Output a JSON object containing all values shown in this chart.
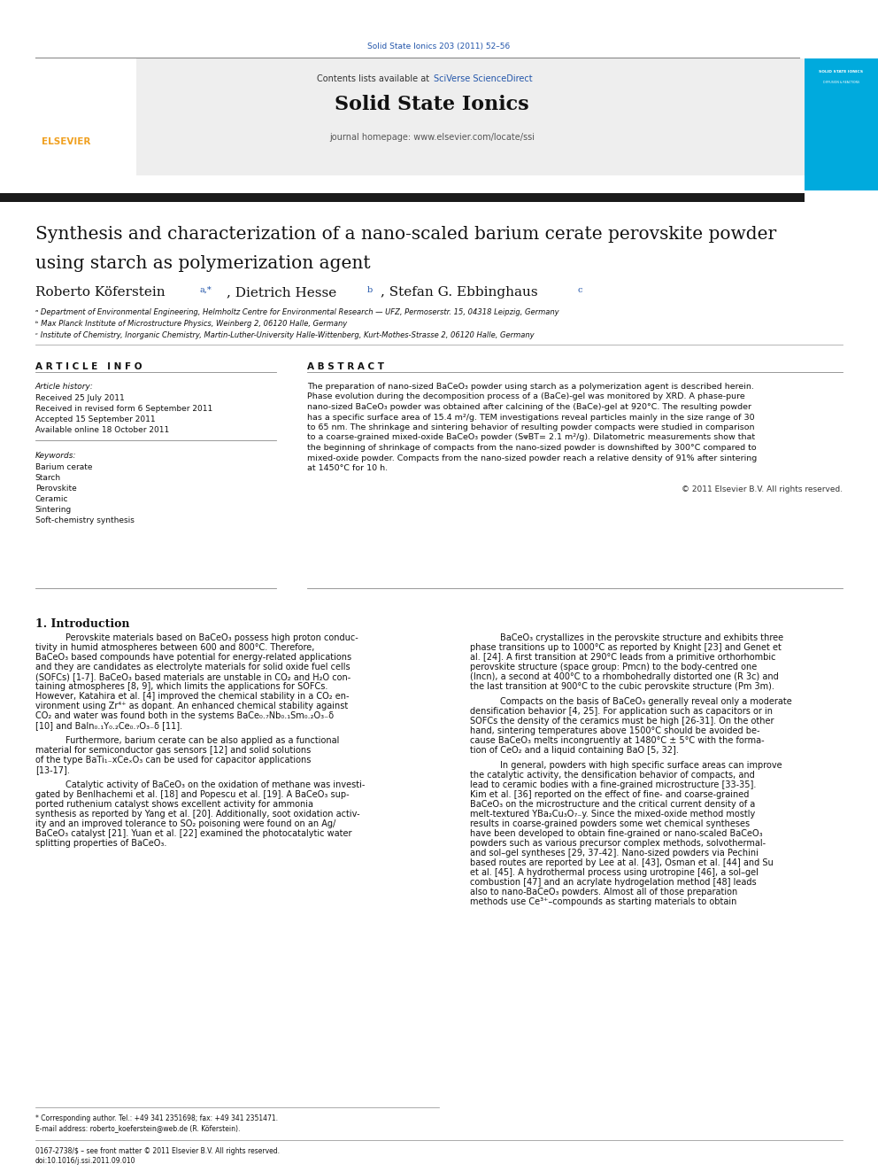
{
  "page_width": 9.92,
  "page_height": 13.23,
  "bg_color": "#ffffff",
  "journal_ref": "Solid State Ionics 203 (2011) 52–56",
  "journal_ref_color": "#2255aa",
  "journal_name": "Solid State Ionics",
  "contents_text": "Contents lists available at ",
  "sciverse_text": "SciVerse ScienceDirect",
  "sciverse_color": "#2255aa",
  "journal_homepage": "journal homepage: www.elsevier.com/locate/ssi",
  "article_title_line1": "Synthesis and characterization of a nano-scaled barium cerate perovskite powder",
  "article_title_line2": "using starch as polymerization agent",
  "author1": "Roberto Köferstein",
  "author1_sup": "a,*",
  "author2": "Dietrich Hesse",
  "author2_sup": "b",
  "author3": "Stefan G. Ebbinghaus",
  "author3_sup": "c",
  "affil_a": "ᵃ Department of Environmental Engineering, Helmholtz Centre for Environmental Research — UFZ, Permoserstr. 15, 04318 Leipzig, Germany",
  "affil_b": "ᵇ Max Planck Institute of Microstructure Physics, Weinberg 2, 06120 Halle, Germany",
  "affil_c": "ᶜ Institute of Chemistry, Inorganic Chemistry, Martin-Luther-University Halle-Wittenberg, Kurt-Mothes-Strasse 2, 06120 Halle, Germany",
  "article_info_header": "A R T I C L E   I N F O",
  "abstract_header": "A B S T R A C T",
  "article_history_label": "Article history:",
  "received1": "Received 25 July 2011",
  "received2": "Received in revised form 6 September 2011",
  "accepted": "Accepted 15 September 2011",
  "available": "Available online 18 October 2011",
  "keywords_label": "Keywords:",
  "keywords": [
    "Barium cerate",
    "Starch",
    "Perovskite",
    "Ceramic",
    "Sintering",
    "Soft-chemistry synthesis"
  ],
  "abstract_lines": [
    "The preparation of nano-sized BaCeO₃ powder using starch as a polymerization agent is described herein.",
    "Phase evolution during the decomposition process of a (BaCe)-gel was monitored by XRD. A phase-pure",
    "nano-sized BaCeO₃ powder was obtained after calcining of the (BaCe)-gel at 920°C. The resulting powder",
    "has a specific surface area of 15.4 m²/g. TEM investigations reveal particles mainly in the size range of 30",
    "to 65 nm. The shrinkage and sintering behavior of resulting powder compacts were studied in comparison",
    "to a coarse-grained mixed-oxide BaCeO₃ powder (SᴪBT= 2.1 m²/g). Dilatometric measurements show that",
    "the beginning of shrinkage of compacts from the nano-sized powder is downshifted by 300°C compared to",
    "mixed-oxide powder. Compacts from the nano-sized powder reach a relative density of 91% after sintering",
    "at 1450°C for 10 h."
  ],
  "copyright": "© 2011 Elsevier B.V. All rights reserved.",
  "intro_header": "1. Introduction",
  "intro_p1_lines": [
    "Perovskite materials based on BaCeO₃ possess high proton conduc-",
    "tivity in humid atmospheres between 600 and 800°C. Therefore,",
    "BaCeO₃ based compounds have potential for energy-related applications",
    "and they are candidates as electrolyte materials for solid oxide fuel cells",
    "(SOFCs) [1-7]. BaCeO₃ based materials are unstable in CO₂ and H₂O con-",
    "taining atmospheres [8, 9], which limits the applications for SOFCs.",
    "However, Katahira et al. [4] improved the chemical stability in a CO₂ en-",
    "vironment using Zr⁴⁺ as dopant. An enhanced chemical stability against",
    "CO₂ and water was found both in the systems BaCe₀.₇Nb₀.₁Sm₀.₂O₃₋δ",
    "[10] and BaIn₀.₁Y₀.₂Ce₀.₇O₃₋δ [11]."
  ],
  "intro_p2_lines": [
    "Furthermore, barium cerate can be also applied as a functional",
    "material for semiconductor gas sensors [12] and solid solutions",
    "of the type BaTi₁₋xCeₓO₃ can be used for capacitor applications",
    "[13-17]."
  ],
  "intro_p3_lines": [
    "Catalytic activity of BaCeO₃ on the oxidation of methane was investi-",
    "gated by Benlhachemi et al. [18] and Popescu et al. [19]. A BaCeO₃ sup-",
    "ported ruthenium catalyst shows excellent activity for ammonia",
    "synthesis as reported by Yang et al. [20]. Additionally, soot oxidation activ-",
    "ity and an improved tolerance to SO₂ poisoning were found on an Ag/",
    "BaCeO₃ catalyst [21]. Yuan et al. [22] examined the photocatalytic water",
    "splitting properties of BaCeO₃."
  ],
  "intro_col2_p1_lines": [
    "BaCeO₃ crystallizes in the perovskite structure and exhibits three",
    "phase transitions up to 1000°C as reported by Knight [23] and Genet et",
    "al. [24]. A first transition at 290°C leads from a primitive orthorhombic",
    "perovskite structure (space group: Pmcn) to the body-centred one",
    "(Incn), a second at 400°C to a rhombohedrally distorted one (R 3c) and",
    "the last transition at 900°C to the cubic perovskite structure (Pm 3m)."
  ],
  "intro_col2_p2_lines": [
    "Compacts on the basis of BaCeO₃ generally reveal only a moderate",
    "densification behavior [4, 25]. For application such as capacitors or in",
    "SOFCs the density of the ceramics must be high [26-31]. On the other",
    "hand, sintering temperatures above 1500°C should be avoided be-",
    "cause BaCeO₃ melts incongruently at 1480°C ± 5°C with the forma-",
    "tion of CeO₂ and a liquid containing BaO [5, 32]."
  ],
  "intro_col2_p3_lines": [
    "In general, powders with high specific surface areas can improve",
    "the catalytic activity, the densification behavior of compacts, and",
    "lead to ceramic bodies with a fine-grained microstructure [33-35].",
    "Kim et al. [36] reported on the effect of fine- and coarse-grained",
    "BaCeO₃ on the microstructure and the critical current density of a",
    "melt-textured YBa₂Cu₃O₇₋y. Since the mixed-oxide method mostly",
    "results in coarse-grained powders some wet chemical syntheses",
    "have been developed to obtain fine-grained or nano-scaled BaCeO₃",
    "powders such as various precursor complex methods, solvothermal-",
    "and sol–gel syntheses [29, 37-42]. Nano-sized powders via Pechini",
    "based routes are reported by Lee at al. [43], Osman et al. [44] and Su",
    "et al. [45]. A hydrothermal process using urotropine [46], a sol–gel",
    "combustion [47] and an acrylate hydrogelation method [48] leads",
    "also to nano-BaCeO₃ powders. Almost all of those preparation",
    "methods use Ce³⁺–compounds as starting materials to obtain"
  ],
  "footer_line1": "* Corresponding author. Tel.: +49 341 2351698; fax: +49 341 2351471.",
  "footer_line2": "E-mail address: roberto_koeferstein@web.de (R. Köferstein).",
  "footer_line3": "0167-2738/$ – see front matter © 2011 Elsevier B.V. All rights reserved.",
  "footer_line4": "doi:10.1016/j.ssi.2011.09.010",
  "sidebar_bg": "#00aadd",
  "dark_bar_color": "#1a1a1a",
  "sup_color": "#2255aa"
}
